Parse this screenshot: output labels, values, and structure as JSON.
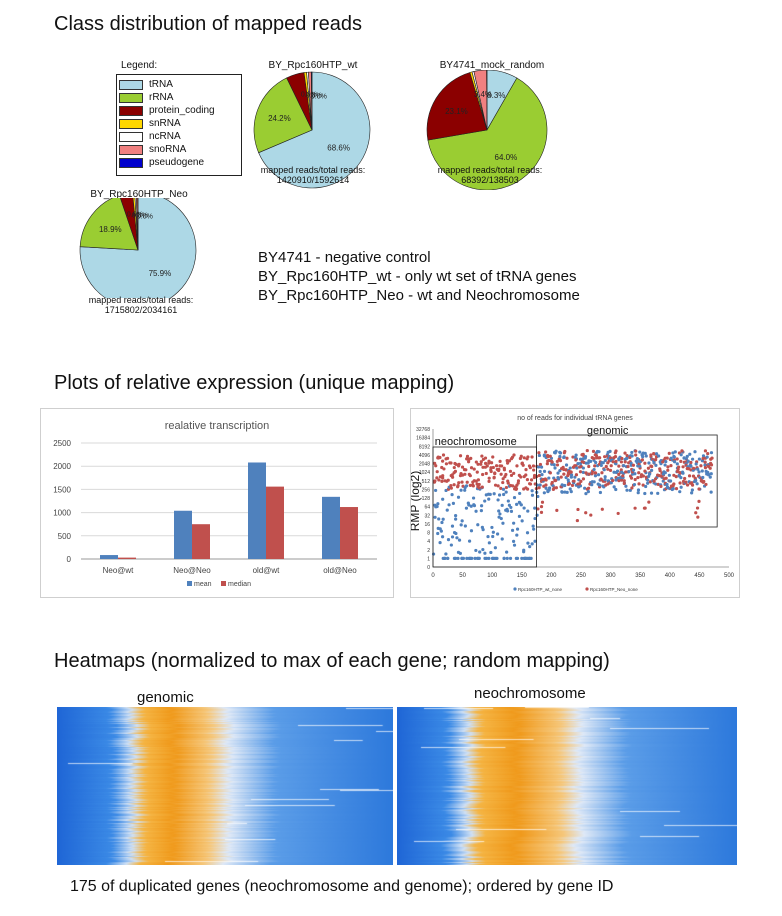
{
  "sections": {
    "class_title": "Class distribution of mapped reads",
    "plots_title": "Plots of relative expression (unique mapping)",
    "heatmaps_title": "Heatmaps (normalized to max of each gene; random mapping)"
  },
  "legend": {
    "title": "Legend:",
    "items": [
      {
        "label": "tRNA",
        "color": "#add8e6"
      },
      {
        "label": "rRNA",
        "color": "#9acd32"
      },
      {
        "label": "protein_coding",
        "color": "#8b0000"
      },
      {
        "label": "snRNA",
        "color": "#ffd700"
      },
      {
        "label": "ncRNA",
        "color": "#ffffff"
      },
      {
        "label": "snoRNA",
        "color": "#f08080"
      },
      {
        "label": "pseudogene",
        "color": "#0000cd"
      }
    ]
  },
  "descriptions": [
    "BY4741 - negative control",
    "BY_Rpc160HTP_wt - only wt set of tRNA genes",
    "BY_Rpc160HTP_Neo - wt and Neochromosome"
  ],
  "heatmap_labels": {
    "genomic": "genomic",
    "neochromosome": "neochromosome"
  },
  "caption": "175 of duplicated genes (neochromosome and genome); ordered by gene ID",
  "chart_data": [
    {
      "type": "pie",
      "title": "BY_Rpc160HTP_wt",
      "labels": [
        "tRNA",
        "rRNA",
        "protein_coding",
        "snRNA",
        "ncRNA",
        "snoRNA",
        "pseudogene"
      ],
      "values": [
        68.6,
        24.2,
        5.0,
        0.7,
        0.5,
        0.8,
        0.2
      ],
      "slice_labels": [
        "68.6%",
        "24.2%",
        "",
        "",
        "",
        "",
        ""
      ],
      "small_labels": "0.0%",
      "note_line1": "mapped reads/total reads:",
      "note_line2": "1420910/1592614"
    },
    {
      "type": "pie",
      "title": "BY4741_mock_random",
      "labels": [
        "tRNA",
        "rRNA",
        "protein_coding",
        "snRNA",
        "ncRNA",
        "snoRNA",
        "pseudogene"
      ],
      "values": [
        8.3,
        64.0,
        23.1,
        0.6,
        0.5,
        3.4,
        0.1
      ],
      "slice_labels": [
        "8.3%",
        "64.0%",
        "23.1%",
        "",
        "",
        "3.4%",
        ""
      ],
      "note_line1": "mapped reads/total reads:",
      "note_line2": "68392/138503"
    },
    {
      "type": "pie",
      "title": "BY_Rpc160HTP_Neo",
      "labels": [
        "tRNA",
        "rRNA",
        "protein_coding",
        "snRNA",
        "ncRNA",
        "snoRNA",
        "pseudogene"
      ],
      "values": [
        75.9,
        18.9,
        3.7,
        0.6,
        0.4,
        0.4,
        0.1
      ],
      "slice_labels": [
        "75.9%",
        "18.9%",
        "",
        "",
        "",
        "",
        ""
      ],
      "small_labels": "0.0%",
      "note_line1": "mapped reads/total reads:",
      "note_line2": "1715802/2034161"
    },
    {
      "type": "bar",
      "title": "realative transcription",
      "categories": [
        "Neo@wt",
        "Neo@Neo",
        "old@wt",
        "old@Neo"
      ],
      "series": [
        {
          "name": "mean",
          "values": [
            85,
            1040,
            2080,
            1340
          ],
          "color": "#4f81bd"
        },
        {
          "name": "median",
          "values": [
            30,
            750,
            1560,
            1120
          ],
          "color": "#c0504d"
        }
      ],
      "ylim": [
        0,
        2500
      ],
      "yticks": [
        0,
        500,
        1000,
        1500,
        2000,
        2500
      ],
      "grid": true,
      "legend": "bottom"
    },
    {
      "type": "scatter",
      "title": "no of reads for individual tRNA genes",
      "ylabel": "RMP (log2)",
      "xlim": [
        0,
        500
      ],
      "xticks": [
        0,
        50,
        100,
        150,
        200,
        250,
        300,
        350,
        400,
        450,
        500
      ],
      "ytick_labels": [
        "0",
        "1",
        "2",
        "4",
        "8",
        "16",
        "32",
        "64",
        "128",
        "256",
        "512",
        "1024",
        "2048",
        "4096",
        "8192",
        "16384",
        "32768"
      ],
      "annotations": [
        "neochromosome",
        "genomic"
      ],
      "series": [
        {
          "name": "Rpc160HTP_wt_none",
          "color": "#4f81bd"
        },
        {
          "name": "Rpc160HTP_Neo_none",
          "color": "#c0504d"
        }
      ]
    }
  ]
}
